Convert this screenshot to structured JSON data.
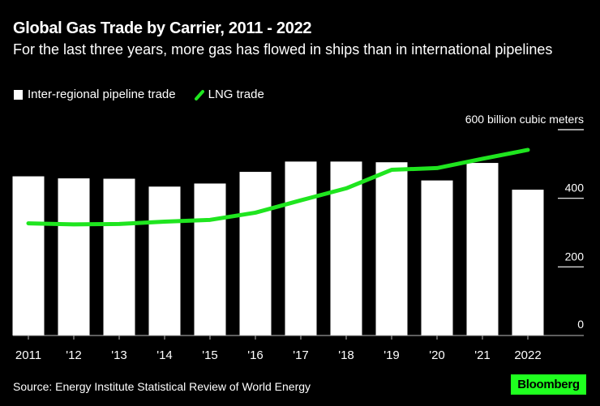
{
  "header": {
    "title": "Global Gas Trade by Carrier, 2011 - 2022",
    "subtitle": "For the last three years, more gas has flowed in ships than in international pipelines"
  },
  "legend": [
    {
      "label": "Inter-regional pipeline trade",
      "type": "bar",
      "color": "#ffffff"
    },
    {
      "label": "LNG trade",
      "type": "line",
      "color": "#1fe51f"
    }
  ],
  "footer": {
    "source": "Source: Energy Institute Statistical Review of World Energy",
    "brand": "Bloomberg",
    "brand_color": "#1fff1f"
  },
  "chart_data": {
    "type": "bar",
    "title": "Global Gas Trade by Carrier, 2011 - 2022",
    "subtitle": "For the last three years, more gas has flowed in ships than in international pipelines",
    "categories": [
      "2011",
      "'12",
      "'13",
      "'14",
      "'15",
      "'16",
      "'17",
      "'18",
      "'19",
      "'20",
      "'21",
      "2022"
    ],
    "series": [
      {
        "name": "Inter-regional pipeline trade",
        "type": "bar",
        "color": "#ffffff",
        "values": [
          464,
          458,
          457,
          434,
          443,
          477,
          507,
          507,
          505,
          452,
          503,
          425
        ]
      },
      {
        "name": "LNG trade",
        "type": "line",
        "color": "#1fe51f",
        "values": [
          327,
          324,
          325,
          332,
          337,
          358,
          394,
          429,
          483,
          488,
          515,
          541
        ]
      }
    ],
    "xlabel": "",
    "ylabel": "billion cubic meters",
    "ylim": [
      0,
      600
    ],
    "yticks": [
      {
        "value": 0,
        "label": "0"
      },
      {
        "value": 200,
        "label": "200"
      },
      {
        "value": 400,
        "label": "400"
      },
      {
        "value": 600,
        "label": "600 billion cubic meters"
      }
    ],
    "y_axis_side": "right",
    "grid": false,
    "legend_position": "top-left"
  }
}
